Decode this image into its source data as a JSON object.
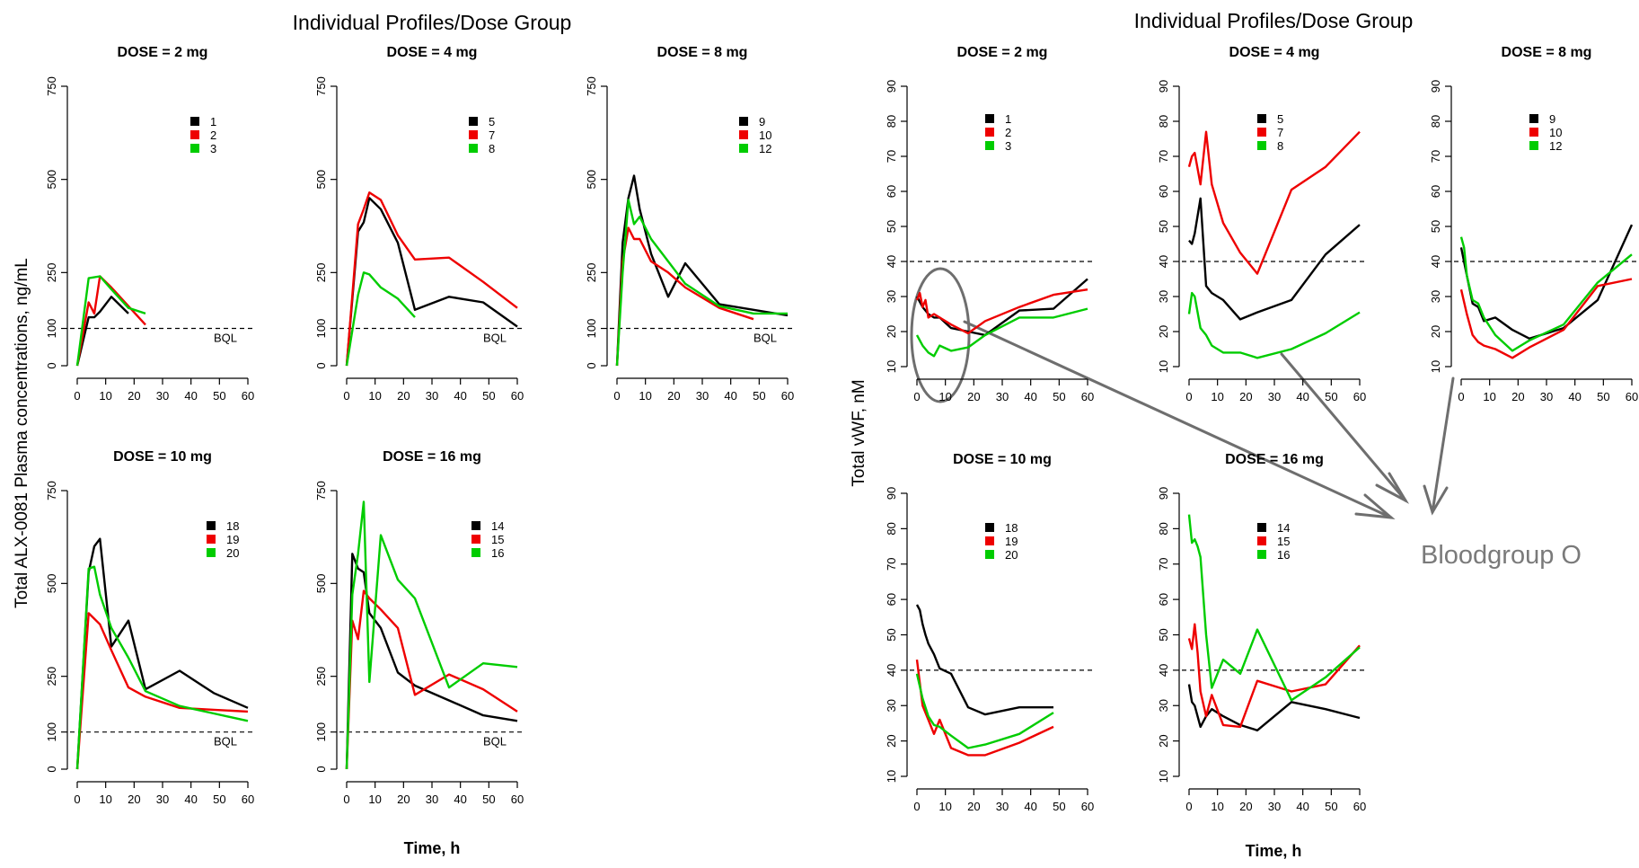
{
  "figures": [
    {
      "title": "Individual Profiles/Dose Group",
      "ylabel": "Total ALX-0081 Plasma concentrations, ng/mL",
      "xlabel": "Time, h"
    },
    {
      "title": "Individual Profiles/Dose Group",
      "ylabel": "Total vWF, nM",
      "xlabel": "Time, h",
      "annotation": "Bloodgroup O"
    }
  ],
  "colors": {
    "black": "#000000",
    "red": "#ee0000",
    "green": "#00cc00",
    "annotation": "#6e6e6e"
  },
  "chart_data": [
    {
      "type": "line",
      "figure": "left",
      "title": "DOSE = 2 mg",
      "xlim": [
        0,
        60
      ],
      "ylim": [
        0,
        750
      ],
      "xticks": [
        0,
        10,
        20,
        30,
        40,
        50,
        60
      ],
      "yticks": [
        0,
        100,
        250,
        500,
        750
      ],
      "reference_line": {
        "y": 100,
        "label": "BQL"
      },
      "series": [
        {
          "name": "1",
          "color": "black",
          "x": [
            0,
            4,
            6,
            8,
            12,
            18
          ],
          "y": [
            0,
            130,
            130,
            145,
            185,
            140
          ]
        },
        {
          "name": "2",
          "color": "red",
          "x": [
            0,
            4,
            6,
            8,
            12,
            18,
            24
          ],
          "y": [
            0,
            170,
            140,
            240,
            210,
            160,
            110
          ]
        },
        {
          "name": "3",
          "color": "green",
          "x": [
            0,
            4,
            8,
            12,
            18,
            24
          ],
          "y": [
            0,
            235,
            240,
            205,
            155,
            140
          ]
        }
      ]
    },
    {
      "type": "line",
      "figure": "left",
      "title": "DOSE = 4 mg",
      "xlim": [
        0,
        60
      ],
      "ylim": [
        0,
        750
      ],
      "xticks": [
        0,
        10,
        20,
        30,
        40,
        50,
        60
      ],
      "yticks": [
        0,
        100,
        250,
        500,
        750
      ],
      "reference_line": {
        "y": 100,
        "label": "BQL"
      },
      "series": [
        {
          "name": "5",
          "color": "black",
          "x": [
            0,
            4,
            6,
            8,
            12,
            18,
            24,
            36,
            48,
            60
          ],
          "y": [
            0,
            360,
            385,
            450,
            420,
            330,
            150,
            185,
            170,
            105
          ]
        },
        {
          "name": "7",
          "color": "red",
          "x": [
            0,
            4,
            6,
            8,
            12,
            18,
            24,
            36,
            48,
            60
          ],
          "y": [
            0,
            380,
            420,
            465,
            445,
            350,
            285,
            290,
            225,
            155
          ]
        },
        {
          "name": "8",
          "color": "green",
          "x": [
            0,
            4,
            6,
            8,
            12,
            18,
            24
          ],
          "y": [
            0,
            190,
            250,
            245,
            210,
            180,
            130
          ]
        }
      ]
    },
    {
      "type": "line",
      "figure": "left",
      "title": "DOSE = 8 mg",
      "xlim": [
        0,
        60
      ],
      "ylim": [
        0,
        750
      ],
      "xticks": [
        0,
        10,
        20,
        30,
        40,
        50,
        60
      ],
      "yticks": [
        0,
        100,
        250,
        500,
        750
      ],
      "reference_line": {
        "y": 100,
        "label": "BQL"
      },
      "series": [
        {
          "name": "9",
          "color": "black",
          "x": [
            0,
            2,
            4,
            6,
            8,
            12,
            18,
            24,
            36,
            48,
            60
          ],
          "y": [
            0,
            330,
            450,
            510,
            420,
            300,
            185,
            275,
            165,
            150,
            135
          ]
        },
        {
          "name": "10",
          "color": "red",
          "x": [
            0,
            2,
            4,
            6,
            8,
            12,
            18,
            24,
            36,
            48
          ],
          "y": [
            0,
            280,
            370,
            340,
            340,
            280,
            250,
            210,
            155,
            125
          ]
        },
        {
          "name": "12",
          "color": "green",
          "x": [
            0,
            2,
            4,
            6,
            8,
            12,
            18,
            24,
            36,
            48,
            60
          ],
          "y": [
            0,
            250,
            445,
            380,
            400,
            340,
            280,
            220,
            160,
            140,
            140
          ]
        }
      ]
    },
    {
      "type": "line",
      "figure": "left",
      "title": "DOSE = 10 mg",
      "xlim": [
        0,
        60
      ],
      "ylim": [
        0,
        750
      ],
      "xticks": [
        0,
        10,
        20,
        30,
        40,
        50,
        60
      ],
      "yticks": [
        0,
        100,
        250,
        500,
        750
      ],
      "reference_line": {
        "y": 100,
        "label": "BQL"
      },
      "series": [
        {
          "name": "18",
          "color": "black",
          "x": [
            0,
            4,
            6,
            8,
            12,
            18,
            24,
            36,
            48,
            60
          ],
          "y": [
            0,
            530,
            600,
            620,
            330,
            400,
            215,
            265,
            205,
            165
          ]
        },
        {
          "name": "19",
          "color": "red",
          "x": [
            0,
            4,
            8,
            12,
            18,
            24,
            36,
            48,
            60
          ],
          "y": [
            0,
            420,
            390,
            320,
            220,
            195,
            165,
            160,
            155
          ]
        },
        {
          "name": "20",
          "color": "green",
          "x": [
            0,
            4,
            6,
            8,
            12,
            18,
            24,
            36,
            48,
            60
          ],
          "y": [
            0,
            540,
            545,
            470,
            380,
            300,
            210,
            170,
            150,
            130
          ]
        }
      ]
    },
    {
      "type": "line",
      "figure": "left",
      "title": "DOSE = 16 mg",
      "xlim": [
        0,
        60
      ],
      "ylim": [
        0,
        750
      ],
      "xticks": [
        0,
        10,
        20,
        30,
        40,
        50,
        60
      ],
      "yticks": [
        0,
        100,
        250,
        500,
        750
      ],
      "reference_line": {
        "y": 100,
        "label": "BQL"
      },
      "series": [
        {
          "name": "14",
          "color": "black",
          "x": [
            0,
            2,
            4,
            6,
            8,
            12,
            18,
            24,
            36,
            48,
            60
          ],
          "y": [
            0,
            580,
            540,
            530,
            420,
            380,
            260,
            225,
            185,
            145,
            130
          ]
        },
        {
          "name": "15",
          "color": "red",
          "x": [
            0,
            2,
            4,
            6,
            8,
            12,
            18,
            24,
            36,
            48,
            60
          ],
          "y": [
            0,
            400,
            350,
            480,
            460,
            430,
            380,
            200,
            255,
            215,
            155
          ]
        },
        {
          "name": "16",
          "color": "green",
          "x": [
            0,
            2,
            4,
            6,
            8,
            12,
            18,
            24,
            36,
            48,
            60
          ],
          "y": [
            0,
            470,
            580,
            720,
            235,
            630,
            510,
            460,
            220,
            285,
            275
          ]
        }
      ]
    },
    {
      "type": "line",
      "figure": "right",
      "title": "DOSE = 2 mg",
      "xlim": [
        0,
        60
      ],
      "ylim": [
        10,
        90
      ],
      "xticks": [
        0,
        10,
        20,
        30,
        40,
        50,
        60
      ],
      "yticks": [
        10,
        20,
        30,
        40,
        50,
        60,
        70,
        80,
        90
      ],
      "reference_line": {
        "y": 40
      },
      "series": [
        {
          "name": "1",
          "color": "black",
          "x": [
            0,
            2,
            4,
            6,
            8,
            12,
            18,
            24,
            36,
            48,
            60
          ],
          "y": [
            30,
            27,
            25,
            24,
            24,
            21,
            20,
            19,
            26,
            26.5,
            35
          ]
        },
        {
          "name": "2",
          "color": "red",
          "x": [
            0,
            1,
            2,
            3,
            4,
            6,
            8,
            12,
            18,
            24,
            36,
            48,
            60
          ],
          "y": [
            29,
            31,
            27,
            29,
            24,
            25,
            24,
            22,
            19.5,
            23,
            27,
            30.5,
            32
          ]
        },
        {
          "name": "3",
          "color": "green",
          "x": [
            0,
            2,
            4,
            6,
            8,
            12,
            18,
            24,
            36,
            48,
            60
          ],
          "y": [
            19,
            16,
            14,
            13,
            16,
            14.5,
            15.5,
            19,
            24,
            24,
            26.5
          ]
        }
      ]
    },
    {
      "type": "line",
      "figure": "right",
      "title": "DOSE = 4 mg",
      "xlim": [
        0,
        60
      ],
      "ylim": [
        10,
        90
      ],
      "xticks": [
        0,
        10,
        20,
        30,
        40,
        50,
        60
      ],
      "yticks": [
        10,
        20,
        30,
        40,
        50,
        60,
        70,
        80,
        90
      ],
      "reference_line": {
        "y": 40
      },
      "series": [
        {
          "name": "5",
          "color": "black",
          "x": [
            0,
            1,
            2,
            4,
            6,
            8,
            12,
            18,
            24,
            36,
            48,
            60
          ],
          "y": [
            46,
            45,
            48,
            58,
            33,
            31,
            29,
            23.5,
            25.5,
            29,
            42,
            50.5
          ]
        },
        {
          "name": "7",
          "color": "red",
          "x": [
            0,
            1,
            2,
            4,
            6,
            8,
            12,
            18,
            24,
            36,
            48,
            60
          ],
          "y": [
            67,
            70,
            71,
            62,
            77,
            62,
            51,
            42.5,
            36.5,
            60.5,
            67,
            77
          ]
        },
        {
          "name": "8",
          "color": "green",
          "x": [
            0,
            1,
            2,
            4,
            6,
            8,
            12,
            18,
            24,
            36,
            48,
            60
          ],
          "y": [
            25,
            31,
            30,
            21,
            19,
            16,
            14,
            14,
            12.5,
            15,
            19.5,
            25.5
          ]
        }
      ]
    },
    {
      "type": "line",
      "figure": "right",
      "title": "DOSE = 8 mg",
      "xlim": [
        0,
        60
      ],
      "ylim": [
        10,
        90
      ],
      "xticks": [
        0,
        10,
        20,
        30,
        40,
        50,
        60
      ],
      "yticks": [
        10,
        20,
        30,
        40,
        50,
        60,
        70,
        80,
        90
      ],
      "reference_line": {
        "y": 40
      },
      "series": [
        {
          "name": "9",
          "color": "black",
          "x": [
            0,
            2,
            4,
            6,
            8,
            12,
            18,
            24,
            36,
            48,
            60
          ],
          "y": [
            44,
            36,
            28,
            27,
            23,
            24,
            20.5,
            18,
            21,
            29,
            50.5
          ]
        },
        {
          "name": "10",
          "color": "red",
          "x": [
            0,
            2,
            4,
            6,
            8,
            12,
            18,
            24,
            36,
            48,
            60
          ],
          "y": [
            32,
            25,
            19,
            17,
            16,
            15,
            12.5,
            15.5,
            20.5,
            33,
            35
          ]
        },
        {
          "name": "12",
          "color": "green",
          "x": [
            0,
            1,
            2,
            4,
            6,
            8,
            12,
            18,
            24,
            36,
            48,
            60
          ],
          "y": [
            47,
            44,
            36,
            29,
            28,
            24,
            19,
            14.5,
            17.5,
            22,
            34,
            42
          ]
        }
      ]
    },
    {
      "type": "line",
      "figure": "right",
      "title": "DOSE = 10 mg",
      "xlim": [
        0,
        60
      ],
      "ylim": [
        10,
        90
      ],
      "xticks": [
        0,
        10,
        20,
        30,
        40,
        50,
        60
      ],
      "yticks": [
        10,
        20,
        30,
        40,
        50,
        60,
        70,
        80,
        90
      ],
      "reference_line": {
        "y": 40
      },
      "series": [
        {
          "name": "18",
          "color": "black",
          "x": [
            0,
            1,
            2,
            3,
            4,
            6,
            8,
            12,
            18,
            24,
            36,
            48
          ],
          "y": [
            58.5,
            57,
            53,
            50,
            47.5,
            44.5,
            40.5,
            39,
            29.5,
            27.5,
            29.5,
            29.5
          ]
        },
        {
          "name": "19",
          "color": "red",
          "x": [
            0,
            2,
            4,
            6,
            8,
            12,
            18,
            24,
            36,
            48
          ],
          "y": [
            43,
            30,
            26,
            22,
            26,
            18,
            16,
            16,
            19.5,
            24
          ]
        },
        {
          "name": "20",
          "color": "green",
          "x": [
            0,
            2,
            4,
            6,
            8,
            12,
            18,
            24,
            36,
            48
          ],
          "y": [
            39,
            32,
            27,
            24.5,
            24,
            21.5,
            18,
            19,
            22,
            28
          ]
        }
      ]
    },
    {
      "type": "line",
      "figure": "right",
      "title": "DOSE = 16 mg",
      "xlim": [
        0,
        60
      ],
      "ylim": [
        10,
        90
      ],
      "xticks": [
        0,
        10,
        20,
        30,
        40,
        50,
        60
      ],
      "yticks": [
        10,
        20,
        30,
        40,
        50,
        60,
        70,
        80,
        90
      ],
      "reference_line": {
        "y": 40
      },
      "series": [
        {
          "name": "14",
          "color": "black",
          "x": [
            0,
            1,
            2,
            4,
            6,
            8,
            12,
            18,
            24,
            36,
            48,
            60
          ],
          "y": [
            36,
            31,
            30,
            24,
            27,
            29,
            27,
            24.5,
            23,
            31,
            29,
            26.5
          ]
        },
        {
          "name": "15",
          "color": "red",
          "x": [
            0,
            1,
            2,
            3,
            4,
            6,
            8,
            12,
            18,
            24,
            36,
            48,
            60
          ],
          "y": [
            49,
            46,
            53,
            45,
            34,
            27,
            33,
            24.5,
            24,
            37,
            34,
            36,
            47
          ]
        },
        {
          "name": "16",
          "color": "green",
          "x": [
            0,
            1,
            2,
            3,
            4,
            6,
            8,
            12,
            18,
            24,
            36,
            48,
            60
          ],
          "y": [
            84,
            76,
            77,
            75,
            72,
            50,
            35,
            43,
            39,
            51.5,
            31.5,
            38,
            46.5
          ]
        }
      ]
    }
  ]
}
